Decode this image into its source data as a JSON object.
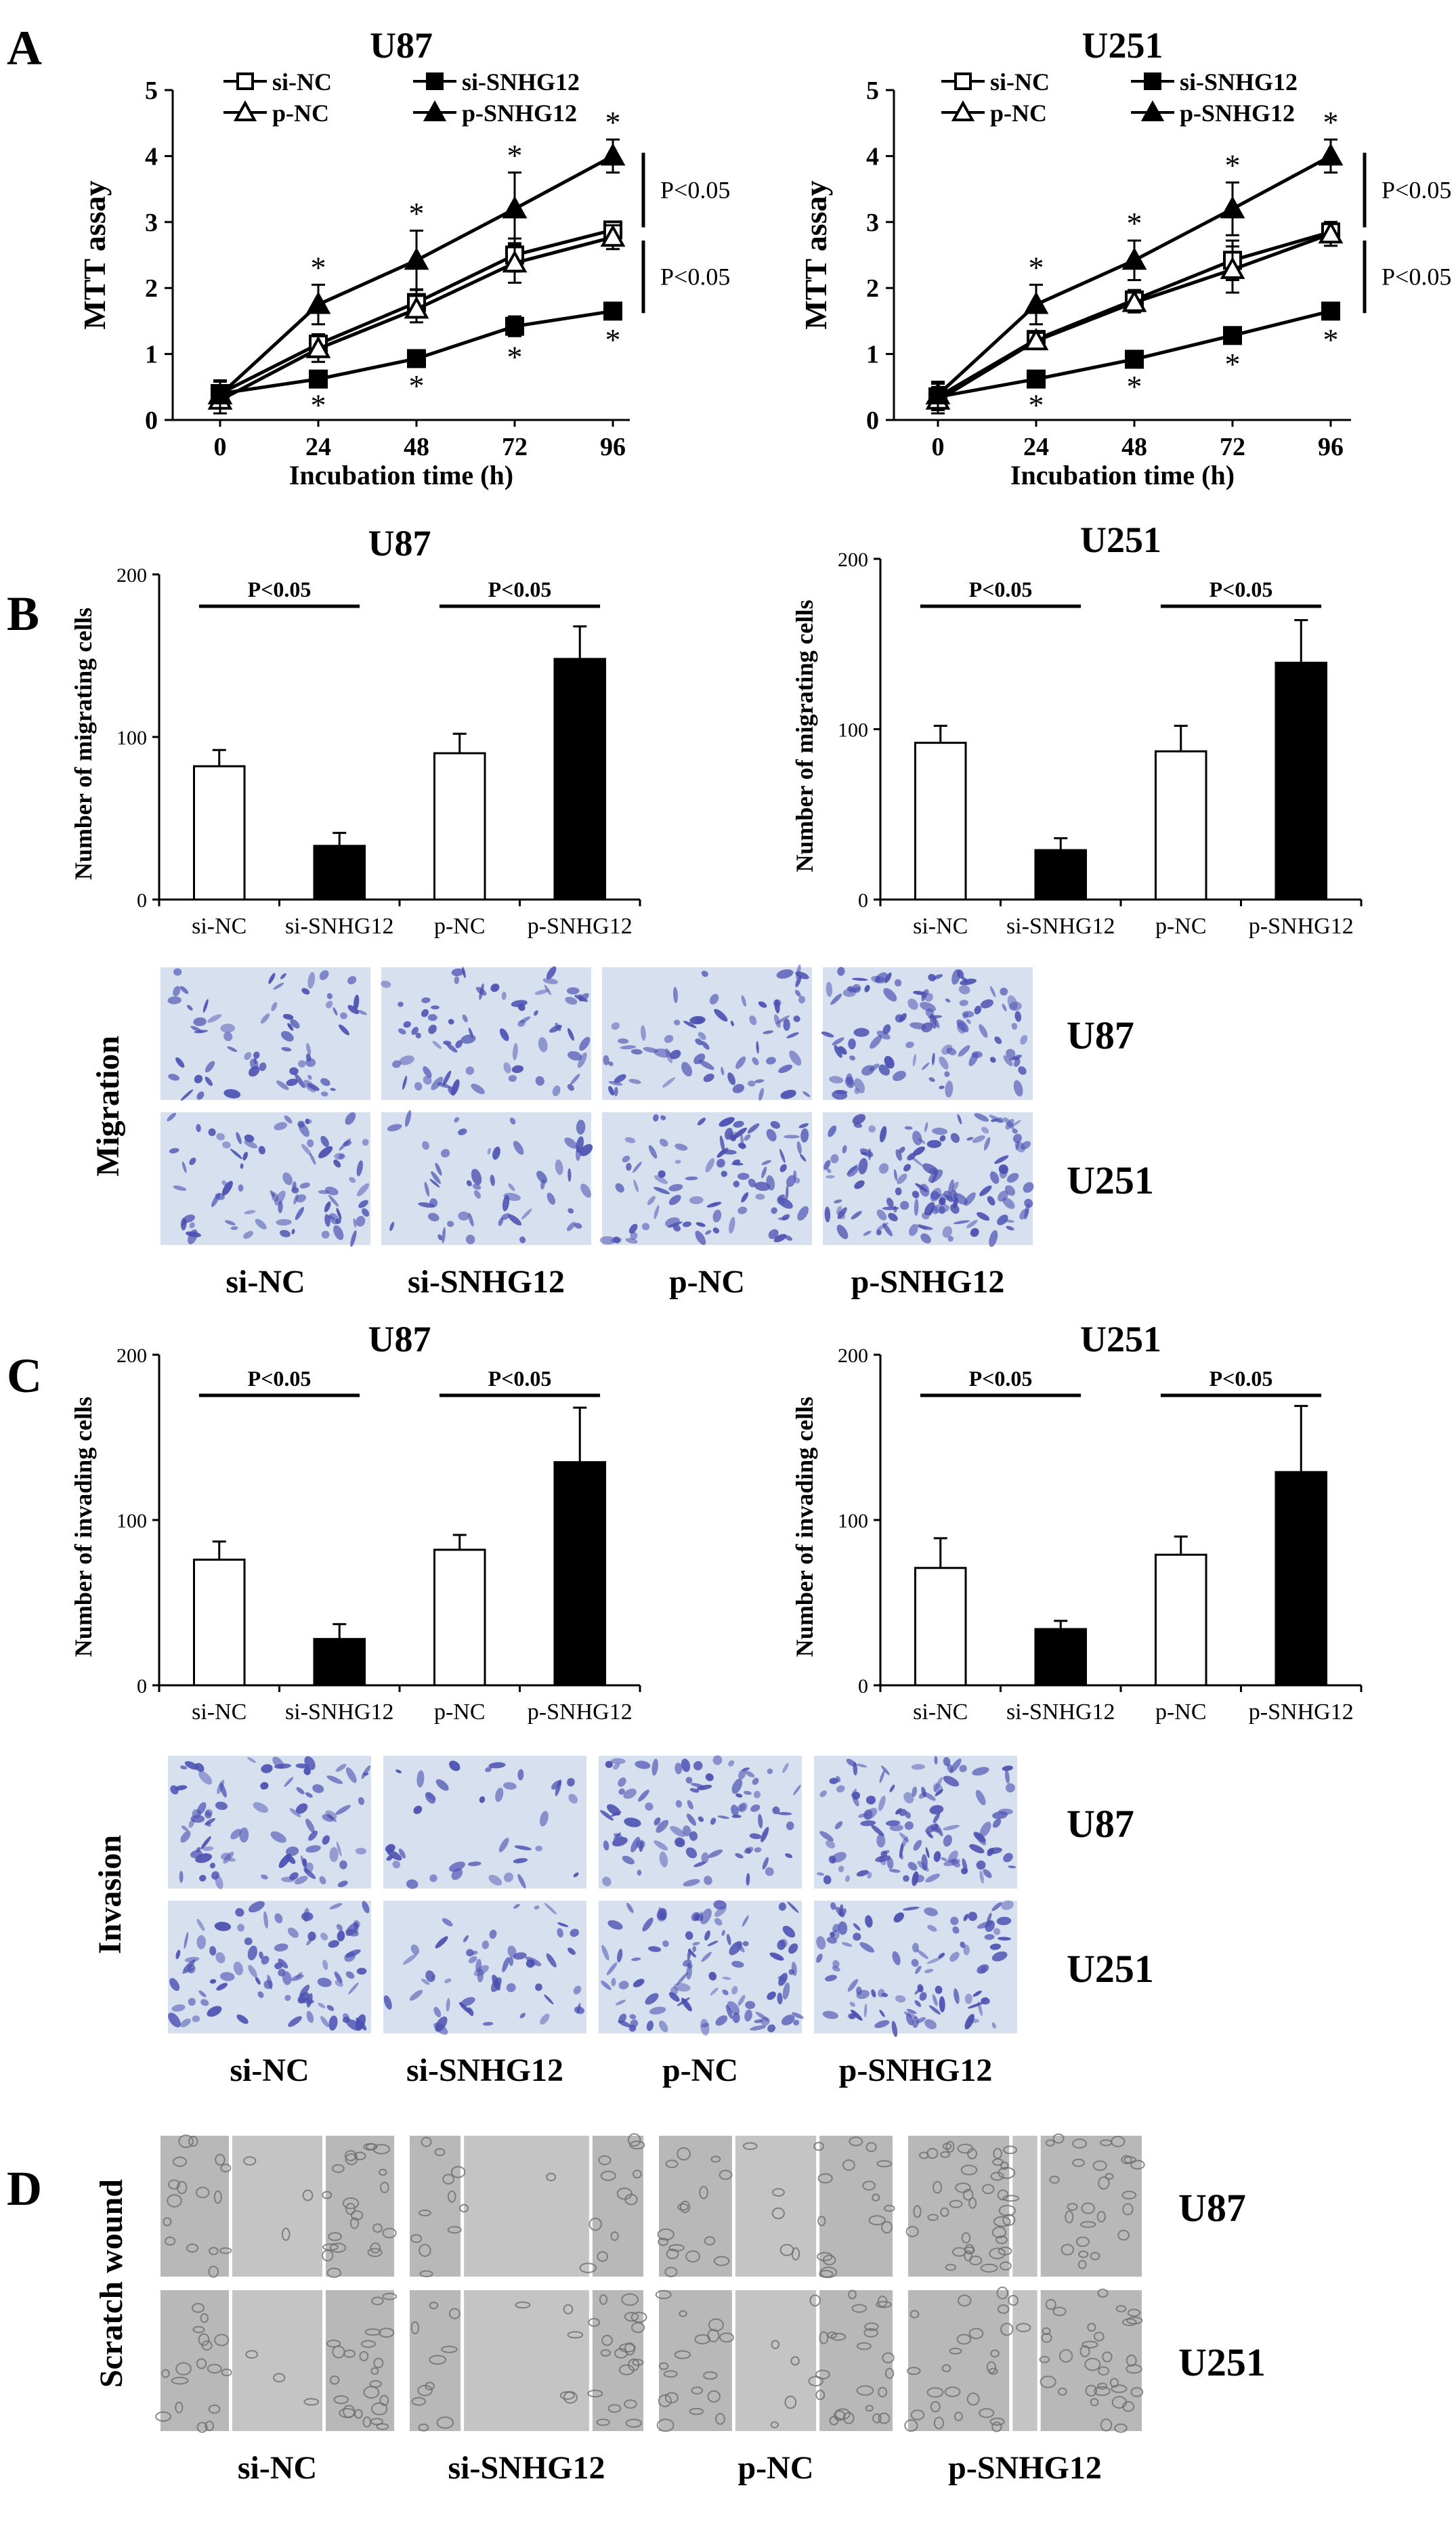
{
  "panel_labels": {
    "A": "A",
    "B": "B",
    "C": "C",
    "D": "D"
  },
  "chart_data": [
    {
      "type": "line",
      "panel": "A",
      "title": "U87",
      "xlabel": "Incubation time (h)",
      "ylabel": "MTT assay",
      "x": [
        0,
        24,
        48,
        72,
        96
      ],
      "ylim": [
        0,
        5
      ],
      "yticks": [
        0,
        1,
        2,
        3,
        4,
        5
      ],
      "series": [
        {
          "name": "si-NC",
          "marker": "open-square",
          "values": [
            0.4,
            1.15,
            1.78,
            2.5,
            2.88
          ],
          "errors": [
            0.2,
            0.15,
            0.2,
            0.25,
            0.12
          ]
        },
        {
          "name": "si-SNHG12",
          "marker": "filled-square",
          "values": [
            0.4,
            0.62,
            0.93,
            1.42,
            1.65
          ],
          "errors": [
            0.2,
            0.08,
            0.1,
            0.15,
            0.12
          ]
        },
        {
          "name": "p-NC",
          "marker": "open-triangle",
          "values": [
            0.3,
            1.08,
            1.68,
            2.38,
            2.77
          ],
          "errors": [
            0.2,
            0.2,
            0.2,
            0.3,
            0.18
          ]
        },
        {
          "name": "p-SNHG12",
          "marker": "filled-triangle",
          "values": [
            0.38,
            1.75,
            2.42,
            3.2,
            4.0
          ],
          "errors": [
            0.2,
            0.3,
            0.45,
            0.55,
            0.25
          ]
        }
      ],
      "stars_above": [
        "*",
        "*",
        "*",
        "*"
      ],
      "stars_below": [
        "*",
        "*",
        "*",
        "*"
      ],
      "brackets": [
        "P<0.05",
        "P<0.05"
      ]
    },
    {
      "type": "line",
      "panel": "A",
      "title": "U251",
      "xlabel": "Incubation time (h)",
      "ylabel": "MTT assay",
      "x": [
        0,
        24,
        48,
        72,
        96
      ],
      "ylim": [
        0,
        5
      ],
      "yticks": [
        0,
        1,
        2,
        3,
        4,
        5
      ],
      "series": [
        {
          "name": "si-NC",
          "marker": "open-square",
          "values": [
            0.35,
            1.22,
            1.82,
            2.42,
            2.85
          ],
          "errors": [
            0.2,
            0.12,
            0.15,
            0.3,
            0.15
          ]
        },
        {
          "name": "si-SNHG12",
          "marker": "filled-square",
          "values": [
            0.35,
            0.62,
            0.92,
            1.28,
            1.65
          ],
          "errors": [
            0.2,
            0.08,
            0.1,
            0.12,
            0.12
          ]
        },
        {
          "name": "p-NC",
          "marker": "open-triangle",
          "values": [
            0.3,
            1.2,
            1.78,
            2.28,
            2.82
          ],
          "errors": [
            0.2,
            0.12,
            0.15,
            0.35,
            0.18
          ]
        },
        {
          "name": "p-SNHG12",
          "marker": "filled-triangle",
          "values": [
            0.38,
            1.75,
            2.42,
            3.2,
            4.0
          ],
          "errors": [
            0.2,
            0.3,
            0.3,
            0.4,
            0.25
          ]
        }
      ],
      "stars_above": [
        "*",
        "*",
        "*",
        "*"
      ],
      "stars_below": [
        "*",
        "*",
        "*",
        "*"
      ],
      "brackets": [
        "P<0.05",
        "P<0.05"
      ]
    },
    {
      "type": "bar",
      "panel": "B",
      "title": "U87",
      "ylabel": "Number of migrating cells",
      "categories": [
        "si-NC",
        "si-SNHG12",
        "p-NC",
        "p-SNHG12"
      ],
      "values": [
        82,
        33,
        90,
        148
      ],
      "errors": [
        10,
        8,
        12,
        20
      ],
      "fills": [
        "#ffffff",
        "#000000",
        "#ffffff",
        "#000000"
      ],
      "ylim": [
        0,
        200
      ],
      "yticks": [
        0,
        100,
        200
      ],
      "sig_labels": [
        "P<0.05",
        "P<0.05"
      ]
    },
    {
      "type": "bar",
      "panel": "B",
      "title": "U251",
      "ylabel": "Number of migrating cells",
      "categories": [
        "si-NC",
        "si-SNHG12",
        "p-NC",
        "p-SNHG12"
      ],
      "values": [
        92,
        29,
        87,
        139
      ],
      "errors": [
        10,
        7,
        15,
        25
      ],
      "fills": [
        "#ffffff",
        "#000000",
        "#ffffff",
        "#000000"
      ],
      "ylim": [
        0,
        200
      ],
      "yticks": [
        0,
        100,
        200
      ],
      "sig_labels": [
        "P<0.05",
        "P<0.05"
      ]
    },
    {
      "type": "bar",
      "panel": "C",
      "title": "U87",
      "ylabel": "Number of invading cells",
      "categories": [
        "si-NC",
        "si-SNHG12",
        "p-NC",
        "p-SNHG12"
      ],
      "values": [
        76,
        28,
        82,
        135
      ],
      "errors": [
        11,
        9,
        9,
        33
      ],
      "fills": [
        "#ffffff",
        "#000000",
        "#ffffff",
        "#000000"
      ],
      "ylim": [
        0,
        200
      ],
      "yticks": [
        0,
        100,
        200
      ],
      "sig_labels": [
        "P<0.05",
        "P<0.05"
      ]
    },
    {
      "type": "bar",
      "panel": "C",
      "title": "U251",
      "ylabel": "Number of invading cells",
      "categories": [
        "si-NC",
        "si-SNHG12",
        "p-NC",
        "p-SNHG12"
      ],
      "values": [
        71,
        34,
        79,
        129
      ],
      "errors": [
        18,
        5,
        11,
        40
      ],
      "fills": [
        "#ffffff",
        "#000000",
        "#ffffff",
        "#000000"
      ],
      "ylim": [
        0,
        200
      ],
      "yticks": [
        0,
        100,
        200
      ],
      "sig_labels": [
        "P<0.05",
        "P<0.05"
      ]
    }
  ],
  "image_grids": {
    "migration": {
      "side_label": "Migration",
      "rows": [
        "U87",
        "U251"
      ],
      "columns": [
        "si-NC",
        "si-SNHG12",
        "p-NC",
        "p-SNHG12"
      ],
      "stain_color": "#4a4fb0",
      "background_color": "#d6e0ee"
    },
    "invasion": {
      "side_label": "Invasion",
      "rows": [
        "U87",
        "U251"
      ],
      "columns": [
        "si-NC",
        "si-SNHG12",
        "p-NC",
        "p-SNHG12"
      ],
      "stain_color": "#4a4fb0",
      "background_color": "#d6e0ee"
    },
    "scratch": {
      "side_label": "Scratch wound",
      "rows": [
        "U87",
        "U251"
      ],
      "columns": [
        "si-NC",
        "si-SNHG12",
        "p-NC",
        "p-SNHG12"
      ],
      "background_color": "#b8b8b8"
    }
  }
}
